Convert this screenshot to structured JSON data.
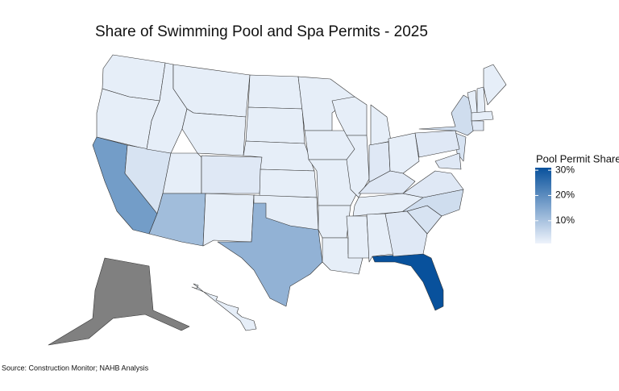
{
  "chart_data": {
    "type": "choropleth",
    "title": "Share of Swimming Pool and Spa Permits - 2025",
    "legend_title": "Pool Permit Share",
    "source": "Source: Construction Monitor; NAHB Analysis",
    "values": [
      2,
      2,
      17,
      4,
      2,
      2,
      2,
      2,
      3,
      11,
      2,
      2,
      2,
      2,
      2,
      13,
      2,
      2,
      2,
      2,
      2,
      2,
      2,
      2,
      2,
      3,
      2,
      3,
      2,
      31,
      4,
      5,
      3,
      2,
      2,
      5,
      4,
      3,
      3,
      2,
      2,
      2,
      2,
      3,
      3,
      null,
      2
    ],
    "scale_range": [
      1,
      31
    ],
    "low_color": "#eef3fb",
    "high_color": "#08519c",
    "na_color": "#808080",
    "legend_ticks": [
      {
        "value": 10,
        "label": "10%"
      },
      {
        "value": 20,
        "label": "20%"
      },
      {
        "value": 30,
        "label": "30%"
      }
    ]
  }
}
